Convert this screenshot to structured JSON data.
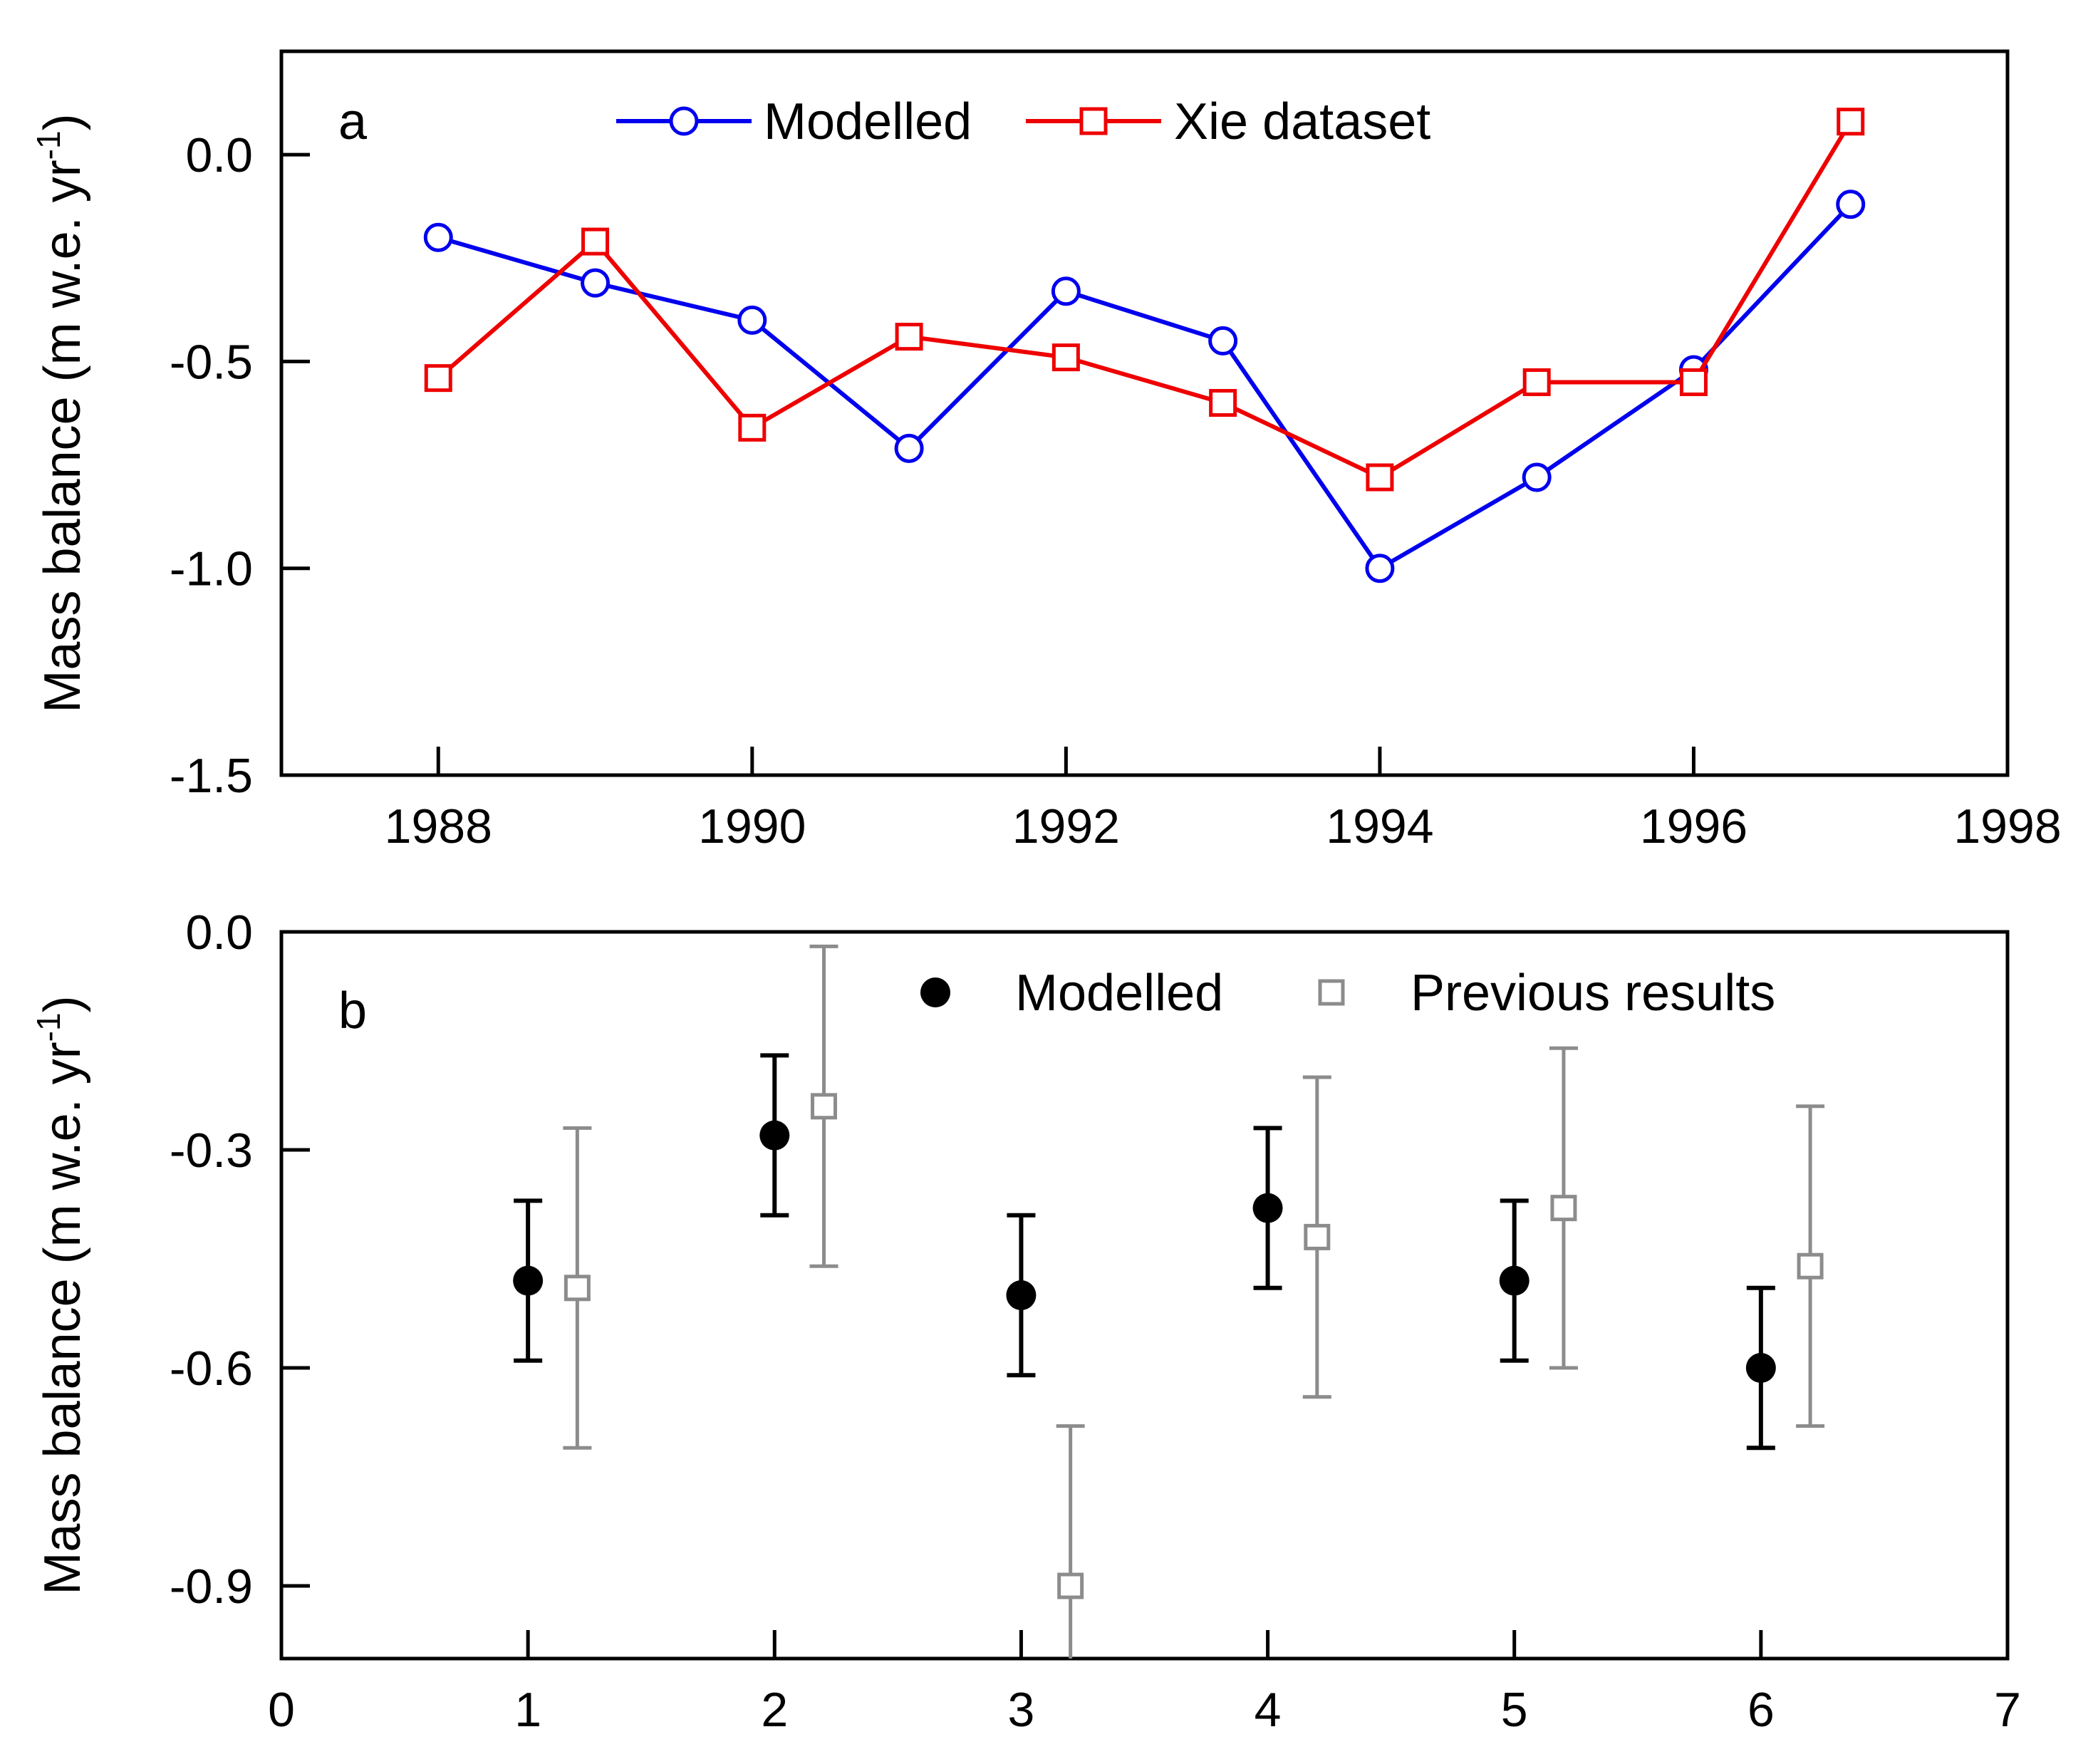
{
  "chart_data": [
    {
      "type": "line",
      "panel_label": "a",
      "ylabel": "Mass balance (m w.e. yr",
      "ylabel_sup": "-1",
      "ylabel_close": ")",
      "xlim": [
        1987,
        1998
      ],
      "ylim": [
        -1.5,
        0.25
      ],
      "x_ticks": [
        "1988",
        "1990",
        "1992",
        "1994",
        "1996",
        "1998"
      ],
      "x_tick_values": [
        1988,
        1990,
        1992,
        1994,
        1996,
        1998
      ],
      "y_ticks": [
        "0.0",
        "-0.5",
        "-1.0",
        "-1.5"
      ],
      "y_tick_values": [
        0.0,
        -0.5,
        -1.0,
        -1.5
      ],
      "x": [
        1988,
        1989,
        1990,
        1991,
        1992,
        1993,
        1994,
        1995,
        1996,
        1997
      ],
      "series": [
        {
          "name": "Modelled",
          "color": "#0000ee",
          "marker": "circle-open",
          "values": [
            -0.2,
            -0.31,
            -0.4,
            -0.71,
            -0.33,
            -0.45,
            -1.0,
            -0.78,
            -0.52,
            -0.12
          ]
        },
        {
          "name": "Xie dataset",
          "color": "#ee0000",
          "marker": "square-open",
          "values": [
            -0.54,
            -0.21,
            -0.66,
            -0.44,
            -0.49,
            -0.6,
            -0.78,
            -0.55,
            -0.55,
            0.08
          ]
        }
      ],
      "legend": "top-center"
    },
    {
      "type": "scatter",
      "panel_label": "b",
      "ylabel": "Mass balance (m w.e. yr",
      "ylabel_sup": "-1",
      "ylabel_close": ")",
      "xlim": [
        0,
        7
      ],
      "ylim": [
        -1.0,
        0.0
      ],
      "x_ticks": [
        "0",
        "1",
        "2",
        "3",
        "4",
        "5",
        "6",
        "7"
      ],
      "x_tick_values": [
        0,
        1,
        2,
        3,
        4,
        5,
        6,
        7
      ],
      "y_ticks": [
        "0.0",
        "-0.3",
        "-0.6",
        "-0.9"
      ],
      "y_tick_values": [
        0.0,
        -0.3,
        -0.6,
        -0.9
      ],
      "series": [
        {
          "name": "Modelled",
          "color": "#000000",
          "marker": "circle-filled",
          "x": [
            1,
            2,
            3,
            4,
            5,
            6
          ],
          "values": [
            -0.48,
            -0.28,
            -0.5,
            -0.38,
            -0.48,
            -0.6
          ],
          "error": [
            0.11,
            0.11,
            0.11,
            0.11,
            0.11,
            0.11
          ]
        },
        {
          "name": "Previous results",
          "color": "#8c8c8c",
          "marker": "square-open",
          "x": [
            1.2,
            2.2,
            3.2,
            4.2,
            5.2,
            6.2
          ],
          "values": [
            -0.49,
            -0.24,
            -0.9,
            -0.42,
            -0.38,
            -0.46
          ],
          "error": [
            0.22,
            0.22,
            0.22,
            0.22,
            0.22,
            0.22
          ]
        }
      ],
      "legend": "top-right"
    }
  ]
}
